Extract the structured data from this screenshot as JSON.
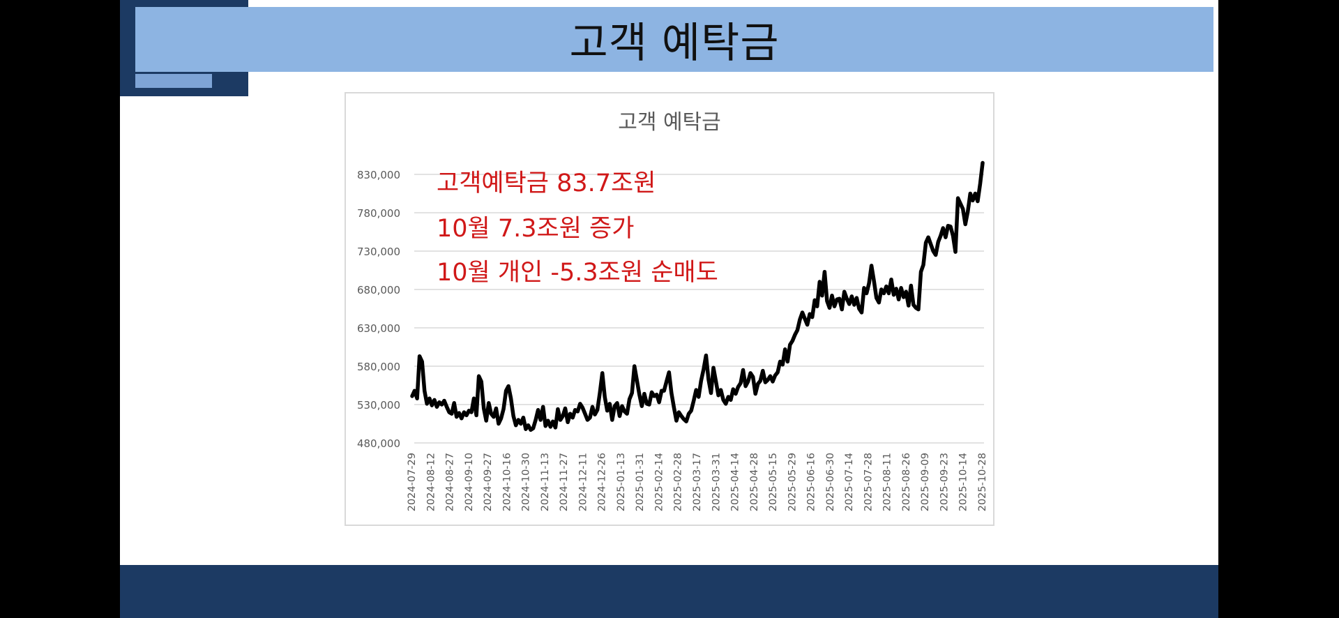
{
  "slide": {
    "title": "고객 예탁금"
  },
  "chart_data": {
    "type": "line",
    "title": "고객 예탁금",
    "xlabel": "",
    "ylabel": "",
    "ylim": [
      480000,
      850000
    ],
    "yticks": [
      480000,
      530000,
      580000,
      630000,
      680000,
      730000,
      780000,
      830000
    ],
    "ytick_labels": [
      "480,000",
      "530,000",
      "580,000",
      "630,000",
      "680,000",
      "730,000",
      "780,000",
      "830,000"
    ],
    "grid": true,
    "x_tick_labels": [
      "2024-07-29",
      "2024-08-12",
      "2024-08-27",
      "2024-09-10",
      "2024-09-27",
      "2024-10-16",
      "2024-10-30",
      "2024-11-13",
      "2024-11-27",
      "2024-12-11",
      "2024-12-26",
      "2025-01-13",
      "2025-01-31",
      "2025-02-14",
      "2025-02-28",
      "2025-03-17",
      "2025-03-31",
      "2025-04-14",
      "2025-04-28",
      "2025-05-15",
      "2025-05-29",
      "2025-06-16",
      "2025-06-30",
      "2025-07-14",
      "2025-07-28",
      "2025-08-11",
      "2025-08-26",
      "2025-09-09",
      "2025-09-23",
      "2025-10-14",
      "2025-10-28"
    ],
    "series": [
      {
        "color": "#000000",
        "values": [
          541000,
          548000,
          538000,
          593000,
          586000,
          548000,
          531000,
          538000,
          529000,
          536000,
          527000,
          533000,
          530000,
          535000,
          527000,
          520000,
          518000,
          532000,
          514000,
          519000,
          512000,
          520000,
          516000,
          522000,
          520000,
          538000,
          516000,
          567000,
          560000,
          525000,
          509000,
          532000,
          518000,
          514000,
          525000,
          505000,
          512000,
          524000,
          548000,
          554000,
          538000,
          515000,
          503000,
          510000,
          505000,
          513000,
          498000,
          503000,
          497000,
          499000,
          510000,
          523000,
          510000,
          527000,
          502000,
          509000,
          501000,
          508000,
          500000,
          524000,
          510000,
          515000,
          525000,
          507000,
          518000,
          513000,
          523000,
          521000,
          531000,
          526000,
          518000,
          510000,
          513000,
          527000,
          517000,
          523000,
          545000,
          571000,
          540000,
          522000,
          531000,
          510000,
          528000,
          532000,
          515000,
          528000,
          521000,
          518000,
          537000,
          545000,
          580000,
          562000,
          543000,
          528000,
          544000,
          531000,
          530000,
          546000,
          541000,
          543000,
          533000,
          548000,
          548000,
          560000,
          572000,
          545000,
          526000,
          509000,
          520000,
          515000,
          511000,
          508000,
          518000,
          522000,
          535000,
          549000,
          540000,
          561000,
          576000,
          594000,
          563000,
          545000,
          578000,
          560000,
          542000,
          549000,
          536000,
          531000,
          540000,
          536000,
          550000,
          544000,
          553000,
          558000,
          575000,
          554000,
          560000,
          571000,
          566000,
          544000,
          557000,
          561000,
          574000,
          559000,
          562000,
          567000,
          560000,
          568000,
          572000,
          586000,
          582000,
          602000,
          586000,
          608000,
          613000,
          621000,
          627000,
          641000,
          650000,
          642000,
          634000,
          648000,
          644000,
          666000,
          658000,
          690000,
          672000,
          703000,
          665000,
          656000,
          672000,
          658000,
          667000,
          668000,
          654000,
          677000,
          668000,
          661000,
          671000,
          660000,
          669000,
          655000,
          650000,
          682000,
          675000,
          688000,
          711000,
          691000,
          669000,
          663000,
          680000,
          675000,
          684000,
          675000,
          693000,
          673000,
          681000,
          667000,
          682000,
          670000,
          677000,
          659000,
          685000,
          660000,
          656000,
          654000,
          703000,
          712000,
          741000,
          748000,
          739000,
          730000,
          725000,
          742000,
          750000,
          760000,
          748000,
          763000,
          762000,
          750000,
          729000,
          799000,
          792000,
          785000,
          765000,
          782000,
          805000,
          796000,
          805000,
          795000,
          818000,
          845000
        ]
      }
    ],
    "annotations": [
      {
        "text": "고객예탁금 83.7조원",
        "color": "#d01818"
      },
      {
        "text": "10월 7.3조원 증가",
        "color": "#d01818"
      },
      {
        "text": "10월 개인 -5.3조원 순매도",
        "color": "#d01818"
      }
    ],
    "colors": {
      "title_bar": "#8db4e2",
      "dark_accent": "#1c3a63",
      "gridline": "#d9d9d9",
      "axis_text": "#595959"
    }
  }
}
